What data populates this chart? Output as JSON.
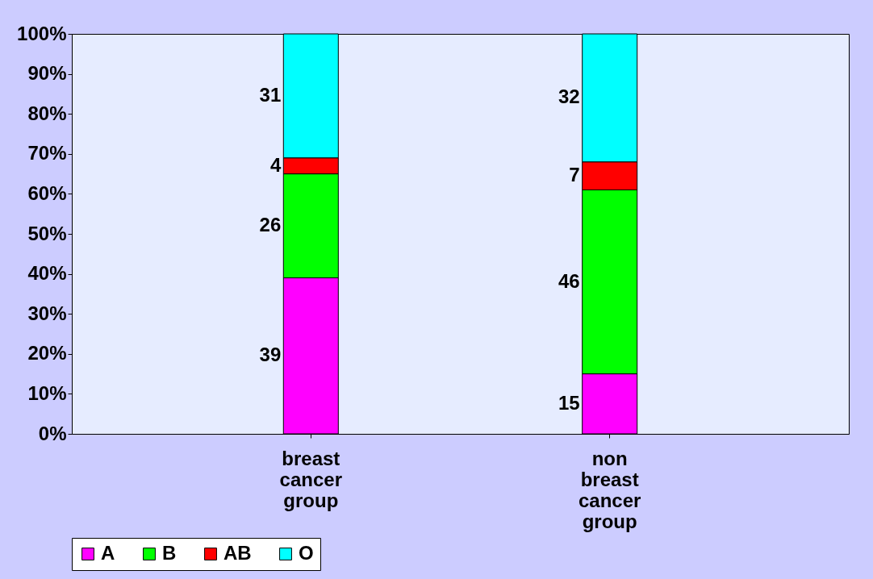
{
  "chart_data": {
    "type": "bar",
    "stacked": true,
    "categories": [
      "breast cancer group",
      "non breast cancer group"
    ],
    "series": [
      {
        "name": "A",
        "color": "#ff00ff",
        "values": [
          39,
          15
        ]
      },
      {
        "name": "B",
        "color": "#00ff00",
        "values": [
          26,
          46
        ]
      },
      {
        "name": "AB",
        "color": "#ff0000",
        "values": [
          4,
          7
        ]
      },
      {
        "name": "O",
        "color": "#00ffff",
        "values": [
          31,
          32
        ]
      }
    ],
    "ylim": [
      0,
      100
    ],
    "yticks": [
      {
        "value": 0,
        "label": "0%"
      },
      {
        "value": 10,
        "label": "10%"
      },
      {
        "value": 20,
        "label": "20%"
      },
      {
        "value": 30,
        "label": "30%"
      },
      {
        "value": 40,
        "label": "40%"
      },
      {
        "value": 50,
        "label": "50%"
      },
      {
        "value": 60,
        "label": "60%"
      },
      {
        "value": 70,
        "label": "70%"
      },
      {
        "value": 80,
        "label": "80%"
      },
      {
        "value": 90,
        "label": "90%"
      },
      {
        "value": 100,
        "label": "100%"
      }
    ],
    "data_labels": true,
    "legend": "bottom",
    "grid": false
  }
}
